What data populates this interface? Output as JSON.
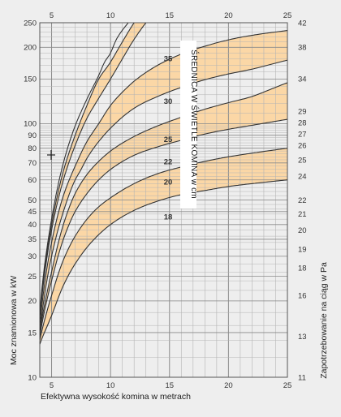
{
  "chart_data": {
    "type": "line",
    "title": "",
    "xlabel": "Efektywna wysokość komina w metrach",
    "ylabel": "Moc znamionowa w kW",
    "ylabel_right": "Zapotrzebowanie na ciąg w Pa",
    "annotation": "ŚREDNICA W ŚWIETLE KOMINA w cm",
    "y_scale": "log",
    "grid": true,
    "xlim": [
      4,
      25
    ],
    "ylim": [
      10,
      250
    ],
    "x_ticks": [
      "5",
      "10",
      "15",
      "20",
      "25"
    ],
    "y_ticks": [
      10,
      15,
      20,
      25,
      30,
      35,
      40,
      45,
      50,
      60,
      70,
      80,
      90,
      100,
      150,
      200,
      250
    ],
    "y_ticks_right": [
      {
        "label": "11",
        "kw": 10
      },
      {
        "label": "13",
        "kw": 14.5
      },
      {
        "label": "16",
        "kw": 21
      },
      {
        "label": "18",
        "kw": 27
      },
      {
        "label": "19",
        "kw": 32
      },
      {
        "label": "20",
        "kw": 38
      },
      {
        "label": "21",
        "kw": 44
      },
      {
        "label": "22",
        "kw": 50
      },
      {
        "label": "24",
        "kw": 62
      },
      {
        "label": "25",
        "kw": 72
      },
      {
        "label": "26",
        "kw": 82
      },
      {
        "label": "27",
        "kw": 91
      },
      {
        "label": "28",
        "kw": 101
      },
      {
        "label": "29",
        "kw": 112
      },
      {
        "label": "34",
        "kw": 150
      },
      {
        "label": "38",
        "kw": 200
      },
      {
        "label": "42",
        "kw": 250
      }
    ],
    "bands": [
      {
        "name": "18",
        "label_at": [
          15,
          43
        ]
      },
      {
        "name": "20",
        "label_at": [
          15,
          59
        ]
      },
      {
        "name": "22",
        "label_at": [
          15,
          71
        ]
      },
      {
        "name": "25",
        "label_at": [
          15,
          87
        ]
      },
      {
        "name": "30",
        "label_at": [
          15,
          123
        ]
      },
      {
        "name": "35",
        "label_at": [
          15,
          181
        ]
      }
    ],
    "series": [
      {
        "x": [
          4,
          5,
          6,
          7,
          8,
          9,
          10,
          12,
          14,
          16,
          18,
          20,
          22,
          25
        ],
        "y": [
          13.5,
          17.5,
          23,
          28,
          32.5,
          36.5,
          40,
          45.5,
          49.5,
          52.5,
          54.5,
          56.5,
          58,
          60
        ]
      },
      {
        "x": [
          4,
          5,
          6,
          7,
          8,
          9,
          10,
          12,
          14,
          16,
          18,
          20,
          22,
          25
        ],
        "y": [
          14,
          21,
          29,
          36,
          42,
          47,
          51,
          58,
          63.5,
          67.5,
          71,
          74,
          76.5,
          80
        ]
      },
      {
        "x": [
          4,
          5,
          6,
          7,
          8,
          9,
          10,
          12,
          14,
          16,
          18,
          20,
          22,
          25
        ],
        "y": [
          14.5,
          24,
          35,
          45,
          53,
          60,
          66,
          75,
          81,
          86,
          91,
          95,
          98.5,
          104
        ]
      },
      {
        "x": [
          4,
          5,
          6,
          7,
          8,
          9,
          10,
          12,
          14,
          16,
          18,
          20,
          22,
          25
        ],
        "y": [
          15,
          26,
          40,
          53,
          63,
          71,
          78,
          89,
          98,
          106,
          114,
          121,
          128,
          145
        ]
      },
      {
        "x": [
          4,
          5,
          6,
          7,
          7.5,
          8,
          9,
          10,
          12,
          14,
          16,
          18,
          20,
          22,
          25
        ],
        "y": [
          15,
          30,
          45,
          60,
          66,
          73,
          85,
          96,
          115,
          128,
          139,
          149,
          157,
          164,
          178
        ]
      },
      {
        "x": [
          4,
          5,
          6,
          7,
          8,
          9,
          10,
          11,
          12,
          14,
          16,
          18,
          20,
          22,
          25
        ],
        "y": [
          16,
          34,
          52,
          68,
          85,
          100,
          118,
          133,
          147,
          170,
          188,
          202,
          214,
          223,
          233
        ]
      },
      {
        "x": [
          4,
          5,
          6,
          7,
          8,
          9,
          10,
          11,
          12,
          13
        ],
        "y": [
          17,
          38,
          60,
          82,
          105,
          126,
          150,
          180,
          215,
          250
        ]
      },
      {
        "x": [
          4,
          5,
          6,
          7,
          8,
          9,
          10,
          11,
          12
        ],
        "y": [
          17.5,
          40,
          65,
          90,
          118,
          150,
          175,
          210,
          250
        ]
      },
      {
        "x": [
          4,
          5,
          6,
          7,
          8,
          9,
          9.5,
          10,
          10.5,
          11.5
        ],
        "y": [
          18,
          42,
          70,
          98,
          125,
          155,
          175,
          190,
          215,
          250
        ]
      }
    ],
    "colors": {
      "band": "#fbd7a6",
      "line": "#333333",
      "grid_major": "#8a8a8a",
      "grid_minor": "#b4b4b4",
      "background": "#eeeeee",
      "label_box": "#ffffff"
    }
  }
}
